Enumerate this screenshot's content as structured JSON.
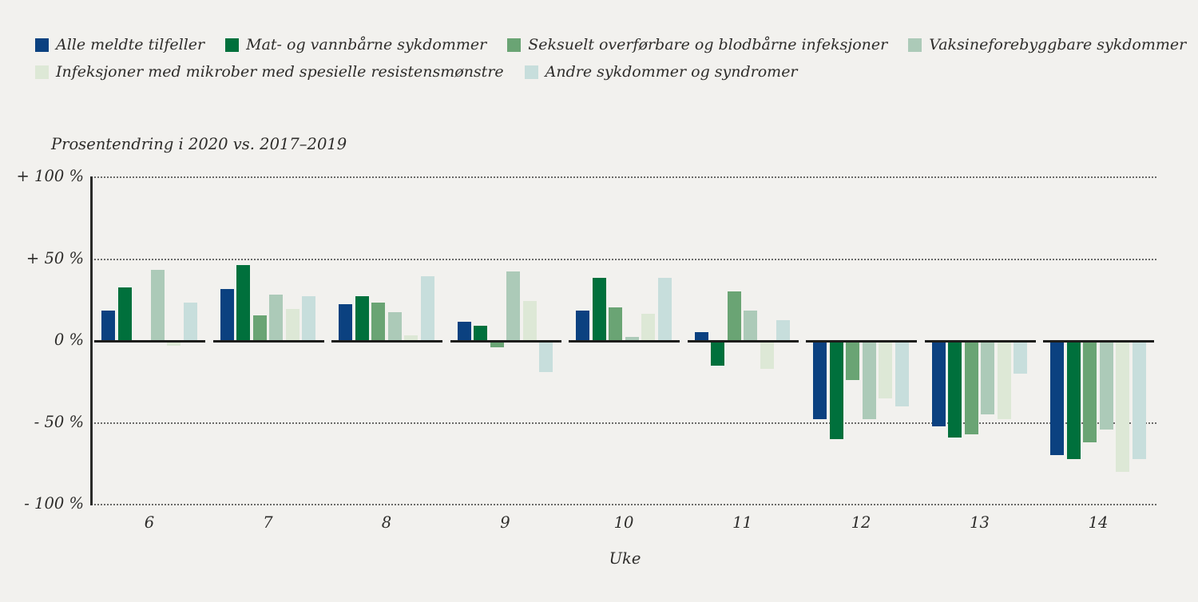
{
  "page": {
    "background": "#f2f1ee"
  },
  "chart_data": {
    "type": "bar",
    "title": "Prosentendring i 2020 vs. 2017–2019",
    "xlabel": "Uke",
    "ylabel": "Prosentendring i 2020 vs. 2017–2019",
    "categories": [
      "6",
      "7",
      "8",
      "9",
      "10",
      "11",
      "12",
      "13",
      "14"
    ],
    "series": [
      {
        "name": "Alle meldte tilfeller",
        "color": "#0b4180",
        "values": [
          18,
          31,
          22,
          11,
          18,
          5,
          -47,
          -51,
          -69
        ]
      },
      {
        "name": "Mat- og vannbårne sykdommer",
        "color": "#00703c",
        "values": [
          32,
          46,
          27,
          9,
          38,
          -14,
          -59,
          -58,
          -71
        ]
      },
      {
        "name": "Seksuelt overførbare og blodbårne infeksjoner",
        "color": "#6aa474",
        "values": [
          0,
          15,
          23,
          -3,
          20,
          30,
          -23,
          -56,
          -61
        ]
      },
      {
        "name": "Vaksineforebyggbare sykdommer",
        "color": "#accab8",
        "values": [
          43,
          28,
          17,
          42,
          2,
          18,
          -47,
          -44,
          -53
        ]
      },
      {
        "name": "Infeksjoner med mikrober med spesielle resistensmønstre",
        "color": "#dde8d6",
        "values": [
          -2,
          19,
          3,
          24,
          16,
          -16,
          -34,
          -47,
          -79
        ]
      },
      {
        "name": "Andre sykdommer og syndromer",
        "color": "#c7dedc",
        "values": [
          23,
          27,
          39,
          -18,
          38,
          12,
          -39,
          -19,
          -71
        ]
      }
    ],
    "yticks": [
      {
        "label": "+ 100 %",
        "value": 100
      },
      {
        "label": "+ 50 %",
        "value": 50
      },
      {
        "label": "0 %",
        "value": 0
      },
      {
        "label": "- 50 %",
        "value": -50
      },
      {
        "label": "- 100 %",
        "value": -100
      }
    ],
    "ylim": [
      -100,
      100
    ],
    "legend_position": "top-left, two rows (items 1-4 on row 1, items 5-6 on row 2)",
    "grid": "horizontal dotted lines at +100, +50, -50, -100; solid black zero-baseline segment under each group"
  }
}
